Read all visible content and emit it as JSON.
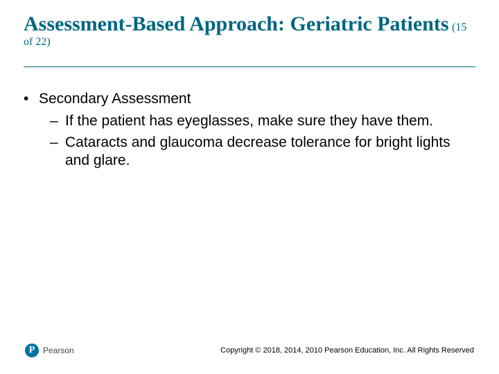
{
  "colors": {
    "title": "#006680",
    "rule": "#006680",
    "text": "#000000",
    "logo_bg": "#0073a5",
    "background": "#ffffff"
  },
  "typography": {
    "title_family": "Times New Roman",
    "title_size_pt": 30,
    "title_weight": "700",
    "subtitle_size_pt": 16,
    "body_family": "Arial",
    "body_size_pt": 21,
    "footer_size_pt": 11
  },
  "title": {
    "main": "Assessment-Based Approach: Geriatric Patients",
    "page_indicator": "(15 of 22)"
  },
  "content": {
    "l1_bullet": "•",
    "l1_text": "Secondary Assessment",
    "l2_dash": "–",
    "items": [
      "If the patient has eyeglasses, make sure they have them.",
      "Cataracts and glaucoma decrease tolerance for bright lights and glare."
    ]
  },
  "footer": {
    "logo_letter": "P",
    "brand": "Pearson",
    "copyright": "Copyright © 2018, 2014, 2010 Pearson Education, Inc. All Rights Reserved"
  }
}
